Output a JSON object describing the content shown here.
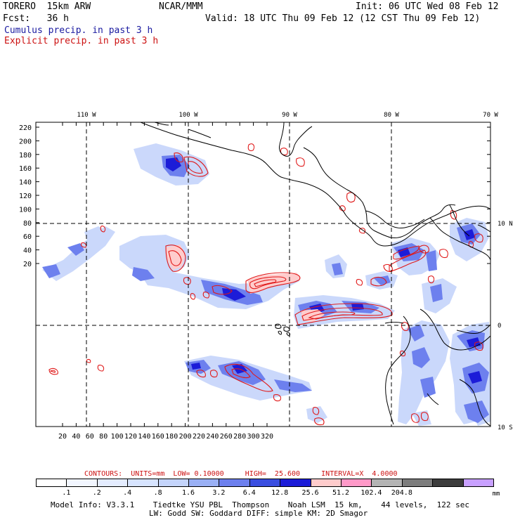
{
  "header": {
    "model": "TORERO  15km ARW",
    "org": "NCAR/MMM",
    "init": "Init: 06 UTC Wed 08 Feb 12",
    "fcst": "Fcst:   36 h",
    "valid": "Valid: 18 UTC Thu 09 Feb 12 (12 CST Thu 09 Feb 12)",
    "field1": "Cumulus precip. in past 3 h",
    "field2": "Explicit precip. in past 3 h"
  },
  "map": {
    "top_lon_labels": [
      "110 W",
      "100 W",
      "90 W",
      "80 W",
      "70 W"
    ],
    "right_lat_labels": [
      "10 N",
      "0",
      "10 S"
    ],
    "y_ticks": [
      "220",
      "200",
      "180",
      "160",
      "140",
      "120",
      "100",
      "80",
      "60",
      "40",
      "20"
    ],
    "x_ticks": [
      "20",
      "40",
      "60",
      "80",
      "100",
      "120",
      "140",
      "160",
      "180",
      "200",
      "220",
      "240",
      "260",
      "280",
      "300",
      "320"
    ]
  },
  "contours_line": {
    "label": "CONTOURS:  UNITS=mm  LOW= 0.10000     HIGH=  25.600     INTERVAL=X  4.0000"
  },
  "colorbar": {
    "colors": [
      "#ffffff",
      "#f2f6ff",
      "#e4ecff",
      "#d7e4ff",
      "#c4d4fb",
      "#9ab0f5",
      "#6d80ee",
      "#3a4ee0",
      "#1c1cd8",
      "#ffcccc",
      "#ff99c8",
      "#b4b4b4",
      "#7d7d7d",
      "#3c3c3c",
      "#c8a0ff"
    ],
    "labels": [
      ".1",
      ".2",
      ".4",
      ".8",
      "1.6",
      "3.2",
      "6.4",
      "12.8",
      "25.6",
      "51.2",
      "102.4",
      "204.8"
    ],
    "unit": "mm"
  },
  "footer": {
    "line1": "Model Info: V3.3.1    Tiedtke YSU PBL  Thompson    Noah LSM  15 km,    44 levels,  122 sec",
    "line2": "LW: Godd SW: Goddard DIFF: simple KM: 2D Smagor"
  }
}
